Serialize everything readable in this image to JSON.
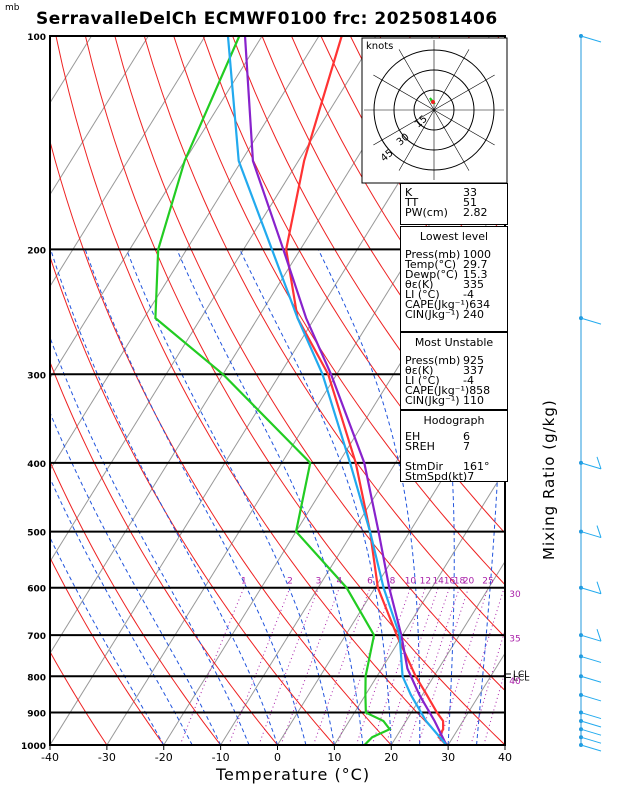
{
  "title": "SerravalleDelCh ECMWF0100 frc: 2025081406",
  "pressure_unit": "mb",
  "x_axis_label": "Temperature (°C)",
  "right_axis_label": "Mixing Ratio (g/kg)",
  "hodograph": {
    "unit": "knots",
    "ring_labels": [
      "15",
      "30",
      "45"
    ]
  },
  "indices": [
    {
      "label": "K",
      "value": "33"
    },
    {
      "label": "TT",
      "value": "51"
    },
    {
      "label": "PW(cm)",
      "value": "2.82"
    }
  ],
  "lowest_level": {
    "header": "Lowest level",
    "rows": [
      {
        "label": "Press(mb)",
        "value": "1000"
      },
      {
        "label": "Temp(°C)",
        "value": "29.7"
      },
      {
        "label": "Dewp(°C)",
        "value": "15.3"
      },
      {
        "label": "θε(K)",
        "value": "335"
      },
      {
        "label": "LI  (°C)",
        "value": "-4"
      },
      {
        "label": "CAPE(Jkg⁻¹)",
        "value": "634"
      },
      {
        "label": "CIN(Jkg⁻¹)",
        "value": "240"
      }
    ]
  },
  "most_unstable": {
    "header": "Most Unstable",
    "rows": [
      {
        "label": "Press(mb)",
        "value": "925"
      },
      {
        "label": "θε(K)",
        "value": "337"
      },
      {
        "label": "LI  (°C)",
        "value": "-4"
      },
      {
        "label": "CAPE(Jkg⁻¹)",
        "value": "858"
      },
      {
        "label": "CIN(Jkg⁻¹)",
        "value": "110"
      }
    ]
  },
  "hodograph_params": {
    "header": "Hodograph",
    "rows": [
      {
        "label": "EH",
        "value": "6"
      },
      {
        "label": "SREH",
        "value": "7"
      },
      {
        "label": "",
        "value": ""
      },
      {
        "label": "StmDir",
        "value": "161°"
      },
      {
        "label": "StmSpd(kt)",
        "value": "7"
      }
    ]
  },
  "lcl_labels": [
    "LCL",
    "LCL"
  ],
  "colors": {
    "temperature": "#ff3333",
    "dewpoint": "#22cc22",
    "parcel": "#8822cc",
    "wetbulb": "#22aaee",
    "dry_adiabat": "#ee2222",
    "moist_adiabat": "#2255dd",
    "mixing_ratio": "#aa22aa",
    "isotherm": "#999999"
  },
  "chart_data": {
    "type": "line",
    "title": "SerravalleDelCh ECMWF0100 frc: 2025081406",
    "xlabel": "Temperature (°C)",
    "ylabel": "mb",
    "xlim": [
      -40,
      40
    ],
    "ylim": [
      1000,
      100
    ],
    "y_scale": "log",
    "x_ticks": [
      -40,
      -30,
      -20,
      -10,
      0,
      10,
      20,
      30,
      40
    ],
    "y_ticks": [
      100,
      200,
      300,
      400,
      500,
      600,
      700,
      800,
      900,
      1000
    ],
    "mixing_ratio_labels": [
      "1",
      "2",
      "3",
      "4",
      "6",
      "8",
      "10",
      "12",
      "14",
      "16",
      "18",
      "20",
      "25",
      "30",
      "35",
      "40"
    ],
    "series": [
      {
        "key": "temperature",
        "pressure": [
          1000,
          975,
          950,
          925,
          900,
          850,
          800,
          700,
          600,
          500,
          400,
          300,
          250,
          200,
          150,
          100
        ],
        "values": [
          29.7,
          27.5,
          27.4,
          26.5,
          24.5,
          20.8,
          16.8,
          9.0,
          0.5,
          -7.0,
          -17.0,
          -31.5,
          -43.0,
          -52.5,
          -59.0,
          -66.0
        ]
      },
      {
        "key": "dewpoint",
        "pressure": [
          1000,
          975,
          950,
          925,
          900,
          850,
          800,
          700,
          600,
          500,
          400,
          300,
          250,
          200,
          150,
          100
        ],
        "values": [
          15.3,
          15.8,
          18.0,
          16.0,
          12.0,
          10.0,
          8.0,
          5.0,
          -5.0,
          -20.0,
          -25.0,
          -50.0,
          -68.0,
          -75.0,
          -80.0,
          -84.0
        ]
      },
      {
        "key": "parcel",
        "pressure": [
          1000,
          925,
          850,
          780,
          700,
          600,
          500,
          400,
          300,
          250,
          200,
          150,
          100
        ],
        "values": [
          29.7,
          25.0,
          19.5,
          14.5,
          9.8,
          2.5,
          -5.5,
          -15.5,
          -31.0,
          -41.5,
          -53.0,
          -68.0,
          -83.0
        ]
      },
      {
        "key": "wetbulb",
        "pressure": [
          1000,
          925,
          850,
          800,
          700,
          600,
          500,
          400,
          300,
          250,
          200,
          150,
          100
        ],
        "values": [
          29.7,
          23.5,
          18.0,
          14.5,
          9.5,
          1.5,
          -7.0,
          -18.0,
          -32.5,
          -43.0,
          -55.0,
          -70.5,
          -86.0
        ]
      }
    ],
    "wind_barbs": [
      {
        "pressure": 1000,
        "speed_kt": 8
      },
      {
        "pressure": 975,
        "speed_kt": 7
      },
      {
        "pressure": 950,
        "speed_kt": 5
      },
      {
        "pressure": 925,
        "speed_kt": 6
      },
      {
        "pressure": 900,
        "speed_kt": 5
      },
      {
        "pressure": 850,
        "speed_kt": 5
      },
      {
        "pressure": 800,
        "speed_kt": 5
      },
      {
        "pressure": 750,
        "speed_kt": 5
      },
      {
        "pressure": 700,
        "speed_kt": 10
      },
      {
        "pressure": 600,
        "speed_kt": 15
      },
      {
        "pressure": 500,
        "speed_kt": 10
      },
      {
        "pressure": 400,
        "speed_kt": 10
      },
      {
        "pressure": 250,
        "speed_kt": 5
      },
      {
        "pressure": 100,
        "speed_kt": 5
      }
    ]
  }
}
